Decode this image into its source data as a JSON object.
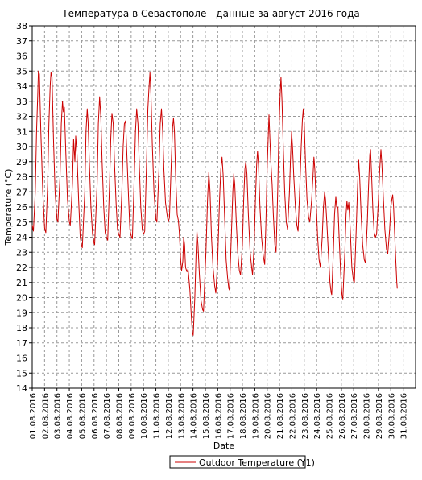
{
  "chart_data": {
    "type": "line",
    "title": "Температура в Севастополе - данные за август 2016 года",
    "xlabel": "Date",
    "ylabel": "Temperature (°C)",
    "ylim": [
      14,
      38
    ],
    "y_ticks": [
      14,
      15,
      16,
      17,
      18,
      19,
      20,
      21,
      22,
      23,
      24,
      25,
      26,
      27,
      28,
      29,
      30,
      31,
      32,
      33,
      34,
      35,
      36,
      37,
      38
    ],
    "x_range": [
      1,
      32
    ],
    "x_tick_labels": [
      "01.08.2016",
      "02.08.2016",
      "03.08.2016",
      "04.08.2016",
      "05.08.2016",
      "06.08.2016",
      "07.08.2016",
      "08.08.2016",
      "09.08.2016",
      "10.08.2016",
      "11.08.2016",
      "12.08.2016",
      "13.08.2016",
      "14.08.2016",
      "15.08.2016",
      "16.08.2016",
      "17.08.2016",
      "18.08.2016",
      "19.08.2016",
      "20.08.2016",
      "21.08.2016",
      "22.08.2016",
      "23.08.2016",
      "24.08.2016",
      "25.08.2016",
      "26.08.2016",
      "27.08.2016",
      "28.08.2016",
      "29.08.2016",
      "30.08.2016",
      "31.08.2016"
    ],
    "grid": true,
    "legend_position": "bottom-center",
    "series": [
      {
        "name": "Outdoor Temperature (Y1)",
        "color": "#cc0000",
        "points": [
          [
            1.0,
            24.8
          ],
          [
            1.1,
            24.4
          ],
          [
            1.25,
            27.0
          ],
          [
            1.35,
            31.0
          ],
          [
            1.45,
            33.5
          ],
          [
            1.5,
            35.0
          ],
          [
            1.58,
            34.8
          ],
          [
            1.7,
            31.0
          ],
          [
            1.85,
            27.0
          ],
          [
            2.0,
            24.6
          ],
          [
            2.1,
            24.3
          ],
          [
            2.25,
            27.5
          ],
          [
            2.35,
            31.5
          ],
          [
            2.45,
            34.0
          ],
          [
            2.52,
            34.9
          ],
          [
            2.6,
            34.6
          ],
          [
            2.72,
            30.5
          ],
          [
            2.85,
            27.0
          ],
          [
            3.0,
            25.2
          ],
          [
            3.08,
            25.0
          ],
          [
            3.25,
            28.0
          ],
          [
            3.35,
            31.5
          ],
          [
            3.45,
            33.0
          ],
          [
            3.52,
            32.3
          ],
          [
            3.6,
            32.6
          ],
          [
            3.72,
            29.5
          ],
          [
            3.85,
            26.5
          ],
          [
            4.0,
            25.0
          ],
          [
            4.08,
            24.8
          ],
          [
            4.25,
            27.5
          ],
          [
            4.35,
            30.5
          ],
          [
            4.45,
            29.0
          ],
          [
            4.52,
            30.7
          ],
          [
            4.62,
            29.5
          ],
          [
            4.75,
            26.5
          ],
          [
            4.88,
            24.0
          ],
          [
            5.0,
            23.4
          ],
          [
            5.05,
            23.3
          ],
          [
            5.25,
            27.0
          ],
          [
            5.35,
            31.0
          ],
          [
            5.45,
            32.5
          ],
          [
            5.52,
            31.6
          ],
          [
            5.62,
            29.0
          ],
          [
            5.75,
            26.0
          ],
          [
            5.88,
            24.2
          ],
          [
            6.0,
            23.6
          ],
          [
            6.05,
            23.5
          ],
          [
            6.25,
            27.5
          ],
          [
            6.35,
            31.5
          ],
          [
            6.45,
            33.3
          ],
          [
            6.55,
            32.0
          ],
          [
            6.65,
            29.0
          ],
          [
            6.78,
            26.0
          ],
          [
            6.9,
            24.3
          ],
          [
            7.0,
            24.0
          ],
          [
            7.1,
            23.8
          ],
          [
            7.25,
            27.5
          ],
          [
            7.35,
            30.5
          ],
          [
            7.45,
            32.2
          ],
          [
            7.55,
            31.5
          ],
          [
            7.65,
            29.0
          ],
          [
            7.78,
            26.3
          ],
          [
            7.9,
            24.5
          ],
          [
            8.0,
            24.2
          ],
          [
            8.1,
            24.0
          ],
          [
            8.25,
            27.0
          ],
          [
            8.35,
            30.0
          ],
          [
            8.45,
            31.5
          ],
          [
            8.55,
            31.7
          ],
          [
            8.65,
            29.5
          ],
          [
            8.78,
            26.8
          ],
          [
            8.9,
            24.5
          ],
          [
            9.0,
            24.1
          ],
          [
            9.1,
            23.9
          ],
          [
            9.25,
            28.0
          ],
          [
            9.35,
            31.0
          ],
          [
            9.45,
            32.5
          ],
          [
            9.55,
            31.5
          ],
          [
            9.65,
            29.0
          ],
          [
            9.78,
            26.0
          ],
          [
            9.9,
            24.5
          ],
          [
            10.0,
            24.2
          ],
          [
            10.1,
            24.4
          ],
          [
            10.25,
            29.0
          ],
          [
            10.35,
            32.5
          ],
          [
            10.45,
            34.0
          ],
          [
            10.52,
            34.9
          ],
          [
            10.6,
            33.5
          ],
          [
            10.72,
            30.0
          ],
          [
            10.85,
            27.0
          ],
          [
            11.0,
            25.2
          ],
          [
            11.08,
            25.0
          ],
          [
            11.25,
            28.5
          ],
          [
            11.35,
            31.5
          ],
          [
            11.45,
            32.5
          ],
          [
            11.55,
            31.0
          ],
          [
            11.65,
            28.5
          ],
          [
            11.78,
            26.3
          ],
          [
            11.9,
            25.5
          ],
          [
            12.0,
            25.0
          ],
          [
            12.1,
            25.3
          ],
          [
            12.25,
            29.0
          ],
          [
            12.35,
            31.3
          ],
          [
            12.42,
            31.9
          ],
          [
            12.5,
            31.0
          ],
          [
            12.6,
            28.0
          ],
          [
            12.72,
            25.5
          ],
          [
            12.82,
            25.1
          ],
          [
            12.9,
            24.3
          ],
          [
            13.0,
            22.5
          ],
          [
            13.08,
            21.8
          ],
          [
            13.18,
            22.4
          ],
          [
            13.25,
            24.0
          ],
          [
            13.32,
            23.5
          ],
          [
            13.4,
            22.0
          ],
          [
            13.52,
            21.7
          ],
          [
            13.6,
            21.9
          ],
          [
            13.75,
            20.5
          ],
          [
            13.85,
            19.0
          ],
          [
            13.95,
            17.7
          ],
          [
            14.02,
            17.5
          ],
          [
            14.15,
            20.0
          ],
          [
            14.25,
            23.0
          ],
          [
            14.32,
            24.4
          ],
          [
            14.4,
            23.5
          ],
          [
            14.52,
            21.5
          ],
          [
            14.65,
            19.8
          ],
          [
            14.78,
            19.2
          ],
          [
            14.85,
            19.1
          ],
          [
            15.05,
            23.0
          ],
          [
            15.18,
            26.5
          ],
          [
            15.28,
            28.3
          ],
          [
            15.38,
            27.0
          ],
          [
            15.5,
            24.0
          ],
          [
            15.62,
            22.0
          ],
          [
            15.75,
            20.8
          ],
          [
            15.85,
            20.3
          ],
          [
            16.0,
            22.5
          ],
          [
            16.15,
            26.5
          ],
          [
            16.25,
            28.5
          ],
          [
            16.35,
            29.3
          ],
          [
            16.45,
            28.0
          ],
          [
            16.55,
            25.5
          ],
          [
            16.68,
            22.5
          ],
          [
            16.8,
            21.3
          ],
          [
            16.9,
            20.6
          ],
          [
            16.95,
            20.5
          ],
          [
            17.1,
            24.0
          ],
          [
            17.22,
            27.0
          ],
          [
            17.3,
            28.2
          ],
          [
            17.38,
            27.5
          ],
          [
            17.5,
            25.0
          ],
          [
            17.62,
            23.0
          ],
          [
            17.75,
            21.8
          ],
          [
            17.85,
            21.5
          ],
          [
            18.0,
            23.5
          ],
          [
            18.1,
            26.5
          ],
          [
            18.2,
            28.5
          ],
          [
            18.28,
            29.0
          ],
          [
            18.36,
            28.2
          ],
          [
            18.48,
            25.5
          ],
          [
            18.62,
            23.0
          ],
          [
            18.75,
            22.0
          ],
          [
            18.82,
            21.5
          ],
          [
            18.95,
            23.5
          ],
          [
            19.05,
            26.5
          ],
          [
            19.15,
            28.8
          ],
          [
            19.22,
            29.7
          ],
          [
            19.3,
            28.8
          ],
          [
            19.42,
            26.0
          ],
          [
            19.55,
            24.0
          ],
          [
            19.68,
            22.8
          ],
          [
            19.8,
            22.2
          ],
          [
            19.9,
            25.0
          ],
          [
            20.0,
            28.5
          ],
          [
            20.1,
            31.0
          ],
          [
            20.15,
            32.1
          ],
          [
            20.2,
            31.0
          ],
          [
            20.3,
            29.0
          ],
          [
            20.4,
            27.5
          ],
          [
            20.5,
            25.5
          ],
          [
            20.62,
            23.5
          ],
          [
            20.72,
            23.0
          ],
          [
            20.85,
            27.0
          ],
          [
            20.95,
            31.0
          ],
          [
            21.05,
            33.5
          ],
          [
            21.12,
            34.6
          ],
          [
            21.2,
            33.0
          ],
          [
            21.3,
            30.0
          ],
          [
            21.42,
            27.0
          ],
          [
            21.55,
            25.0
          ],
          [
            21.65,
            24.5
          ],
          [
            21.8,
            27.0
          ],
          [
            21.9,
            29.5
          ],
          [
            21.98,
            31.0
          ],
          [
            22.05,
            30.0
          ],
          [
            22.15,
            28.0
          ],
          [
            22.28,
            26.0
          ],
          [
            22.4,
            24.8
          ],
          [
            22.5,
            24.4
          ],
          [
            22.65,
            27.5
          ],
          [
            22.75,
            30.0
          ],
          [
            22.85,
            31.8
          ],
          [
            22.92,
            32.5
          ],
          [
            23.0,
            31.5
          ],
          [
            23.1,
            29.0
          ],
          [
            23.22,
            26.5
          ],
          [
            23.35,
            25.3
          ],
          [
            23.45,
            25.0
          ],
          [
            23.6,
            26.5
          ],
          [
            23.7,
            28.0
          ],
          [
            23.78,
            29.3
          ],
          [
            23.85,
            28.5
          ],
          [
            23.95,
            26.5
          ],
          [
            24.08,
            24.0
          ],
          [
            24.2,
            22.5
          ],
          [
            24.3,
            22.0
          ],
          [
            24.45,
            24.0
          ],
          [
            24.55,
            26.0
          ],
          [
            24.65,
            27.0
          ],
          [
            24.72,
            26.5
          ],
          [
            24.82,
            25.0
          ],
          [
            24.95,
            23.0
          ],
          [
            25.08,
            21.0
          ],
          [
            25.18,
            20.3
          ],
          [
            25.22,
            20.2
          ],
          [
            25.35,
            23.0
          ],
          [
            25.45,
            25.5
          ],
          [
            25.55,
            26.7
          ],
          [
            25.62,
            26.0
          ],
          [
            25.72,
            26.0
          ],
          [
            25.82,
            24.0
          ],
          [
            25.95,
            21.5
          ],
          [
            26.05,
            20.2
          ],
          [
            26.12,
            19.9
          ],
          [
            26.28,
            23.0
          ],
          [
            26.38,
            25.5
          ],
          [
            26.45,
            26.4
          ],
          [
            26.52,
            25.8
          ],
          [
            26.6,
            26.3
          ],
          [
            26.72,
            24.5
          ],
          [
            26.85,
            22.0
          ],
          [
            26.98,
            21.1
          ],
          [
            27.05,
            21.0
          ],
          [
            27.2,
            24.5
          ],
          [
            27.32,
            27.5
          ],
          [
            27.4,
            29.1
          ],
          [
            27.48,
            28.0
          ],
          [
            27.6,
            25.5
          ],
          [
            27.72,
            23.5
          ],
          [
            27.85,
            22.5
          ],
          [
            27.95,
            22.3
          ],
          [
            28.1,
            25.0
          ],
          [
            28.2,
            27.5
          ],
          [
            28.3,
            29.5
          ],
          [
            28.36,
            29.8
          ],
          [
            28.45,
            28.0
          ],
          [
            28.55,
            25.8
          ],
          [
            28.65,
            24.3
          ],
          [
            28.75,
            24.0
          ],
          [
            28.85,
            24.2
          ],
          [
            29.0,
            26.5
          ],
          [
            29.1,
            28.5
          ],
          [
            29.2,
            29.8
          ],
          [
            29.28,
            28.8
          ],
          [
            29.4,
            26.5
          ],
          [
            29.52,
            24.5
          ],
          [
            29.65,
            23.2
          ],
          [
            29.75,
            22.9
          ],
          [
            29.9,
            24.5
          ],
          [
            30.0,
            26.0
          ],
          [
            30.08,
            26.5
          ],
          [
            30.15,
            26.8
          ],
          [
            30.22,
            26.0
          ],
          [
            30.32,
            24.0
          ],
          [
            30.4,
            22.5
          ],
          [
            30.48,
            21.0
          ],
          [
            30.52,
            20.6
          ]
        ]
      }
    ]
  }
}
